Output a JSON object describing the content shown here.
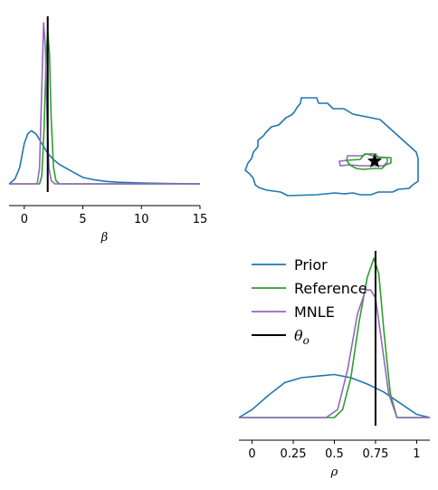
{
  "chart_data": [
    {
      "panel": "beta-marginal",
      "type": "line",
      "xlabel": "β",
      "xlim": [
        -1.3,
        15
      ],
      "xticks": [
        0,
        5,
        10,
        15
      ],
      "xtick_labels": [
        "0",
        "5",
        "10",
        "15"
      ],
      "series": [
        {
          "name": "Prior",
          "color": "#1f77b4",
          "x": [
            -1.3,
            -0.8,
            -0.4,
            0.0,
            0.3,
            0.6,
            1.0,
            1.5,
            2.0,
            2.5,
            3.0,
            4.0,
            5.0,
            6.0,
            7.0,
            8.0,
            10.0,
            12.0,
            15.0
          ],
          "y": [
            0.0,
            0.03,
            0.1,
            0.25,
            0.31,
            0.33,
            0.31,
            0.25,
            0.19,
            0.15,
            0.12,
            0.08,
            0.04,
            0.025,
            0.015,
            0.01,
            0.005,
            0.002,
            0.0
          ]
        },
        {
          "name": "Reference",
          "color": "#2ca02c",
          "x": [
            -1.3,
            1.3,
            1.5,
            1.7,
            1.85,
            2.0,
            2.15,
            2.3,
            2.5,
            2.7,
            3.0,
            15.0
          ],
          "y": [
            0.0,
            0.0,
            0.05,
            0.35,
            0.75,
            0.95,
            0.8,
            0.4,
            0.1,
            0.02,
            0.0,
            0.0
          ]
        },
        {
          "name": "MNLE",
          "color": "#9467bd",
          "x": [
            -1.3,
            1.1,
            1.3,
            1.5,
            1.65,
            1.8,
            1.95,
            2.1,
            2.3,
            2.6,
            15.0
          ],
          "y": [
            0.0,
            0.0,
            0.1,
            0.6,
            1.0,
            0.85,
            0.4,
            0.1,
            0.02,
            0.0,
            0.0
          ]
        }
      ],
      "true_value": 2.0
    },
    {
      "panel": "beta-rho-joint",
      "type": "contour",
      "series": [
        {
          "name": "Prior",
          "color": "#1f77b4"
        },
        {
          "name": "Reference",
          "color": "#2ca02c"
        },
        {
          "name": "MNLE",
          "color": "#9467bd"
        }
      ],
      "true_value_marker": "star"
    },
    {
      "panel": "rho-marginal",
      "type": "line",
      "xlabel": "ρ",
      "xlim": [
        -0.08,
        1.08
      ],
      "xticks": [
        0,
        0.25,
        0.5,
        0.75,
        1
      ],
      "xtick_labels": [
        "0",
        "0.25",
        "0.5",
        "0.75",
        "1"
      ],
      "series": [
        {
          "name": "Prior",
          "color": "#1f77b4",
          "x": [
            -0.08,
            0.0,
            0.1,
            0.2,
            0.3,
            0.4,
            0.5,
            0.6,
            0.7,
            0.8,
            0.9,
            1.0,
            1.08
          ],
          "y": [
            0.0,
            0.05,
            0.14,
            0.22,
            0.25,
            0.26,
            0.27,
            0.25,
            0.21,
            0.16,
            0.09,
            0.02,
            0.0
          ]
        },
        {
          "name": "Reference",
          "color": "#2ca02c",
          "x": [
            -0.08,
            0.5,
            0.55,
            0.6,
            0.65,
            0.7,
            0.74,
            0.77,
            0.8,
            0.84,
            0.88,
            1.08
          ],
          "y": [
            0.0,
            0.0,
            0.05,
            0.25,
            0.6,
            0.88,
            1.0,
            0.9,
            0.55,
            0.15,
            0.0,
            0.0
          ]
        },
        {
          "name": "MNLE",
          "color": "#9467bd",
          "x": [
            -0.08,
            0.45,
            0.52,
            0.58,
            0.64,
            0.69,
            0.72,
            0.75,
            0.79,
            0.83,
            0.88,
            1.08
          ],
          "y": [
            0.0,
            0.0,
            0.05,
            0.3,
            0.65,
            0.8,
            0.8,
            0.75,
            0.45,
            0.15,
            0.0,
            0.0
          ]
        }
      ],
      "true_value": 0.75
    }
  ],
  "legend": {
    "entries": [
      {
        "label": "Prior",
        "color": "#1f77b4",
        "math": false
      },
      {
        "label": "Reference",
        "color": "#2ca02c",
        "math": false
      },
      {
        "label": "MNLE",
        "color": "#9467bd",
        "math": false
      },
      {
        "label": "θ",
        "sub": "o",
        "color": "#000000",
        "math": true
      }
    ]
  }
}
